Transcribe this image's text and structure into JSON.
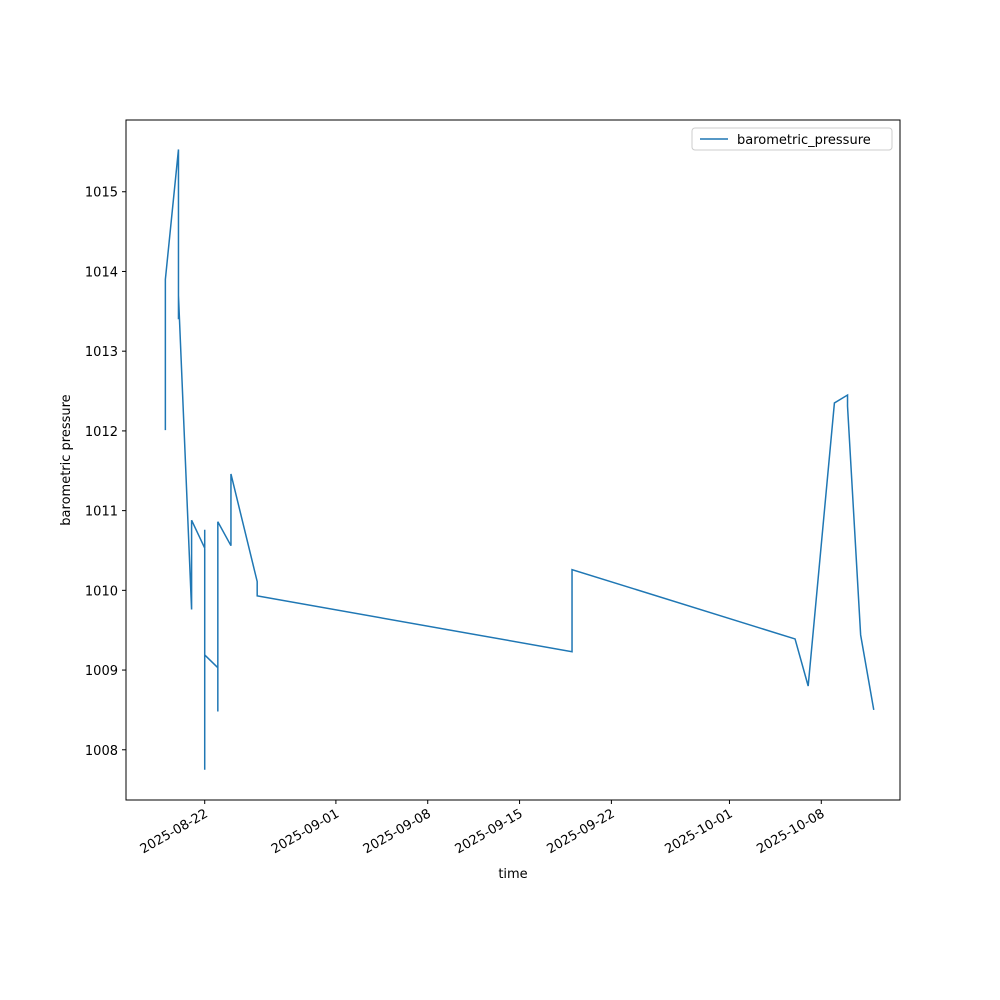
{
  "chart_data": {
    "type": "line",
    "xlabel": "time",
    "ylabel": "barometric pressure",
    "x": [
      "2025-08-19",
      "2025-08-19",
      "2025-08-19",
      "2025-08-19",
      "2025-08-19",
      "2025-08-20",
      "2025-08-20",
      "2025-08-20",
      "2025-08-20",
      "2025-08-21",
      "2025-08-21",
      "2025-08-22",
      "2025-08-22",
      "2025-08-22",
      "2025-08-22",
      "2025-08-23",
      "2025-08-23",
      "2025-08-23",
      "2025-08-23",
      "2025-08-23",
      "2025-08-24",
      "2025-08-24",
      "2025-08-26",
      "2025-08-26",
      "2025-09-19",
      "2025-09-19",
      "2025-10-06",
      "2025-10-07",
      "2025-10-09",
      "2025-10-10",
      "2025-10-10",
      "2025-10-11",
      "2025-10-12"
    ],
    "series": [
      {
        "name": "barometric_pressure",
        "color": "#1f77b4",
        "values": [
          1013.07,
          1013.32,
          1012.11,
          1012.01,
          1013.9,
          1015.53,
          1013.4,
          1014.36,
          1013.7,
          1009.76,
          1010.88,
          1010.53,
          1010.76,
          1007.75,
          1009.19,
          1009.03,
          1009.55,
          1008.48,
          1009.63,
          1010.86,
          1010.56,
          1011.46,
          1010.11,
          1009.93,
          1009.23,
          1010.26,
          1009.39,
          1008.8,
          1012.35,
          1012.45,
          1012.31,
          1009.44,
          1008.5
        ]
      }
    ],
    "xlim": [
      "2025-08-16",
      "2025-10-14"
    ],
    "xticks": [
      "2025-08-22",
      "2025-09-01",
      "2025-09-08",
      "2025-09-15",
      "2025-09-22",
      "2025-10-01",
      "2025-10-08"
    ],
    "ylim": [
      1007.37,
      1015.9
    ],
    "yticks": [
      1008,
      1009,
      1010,
      1011,
      1012,
      1013,
      1014,
      1015
    ],
    "legend": "upper right",
    "grid": false
  }
}
